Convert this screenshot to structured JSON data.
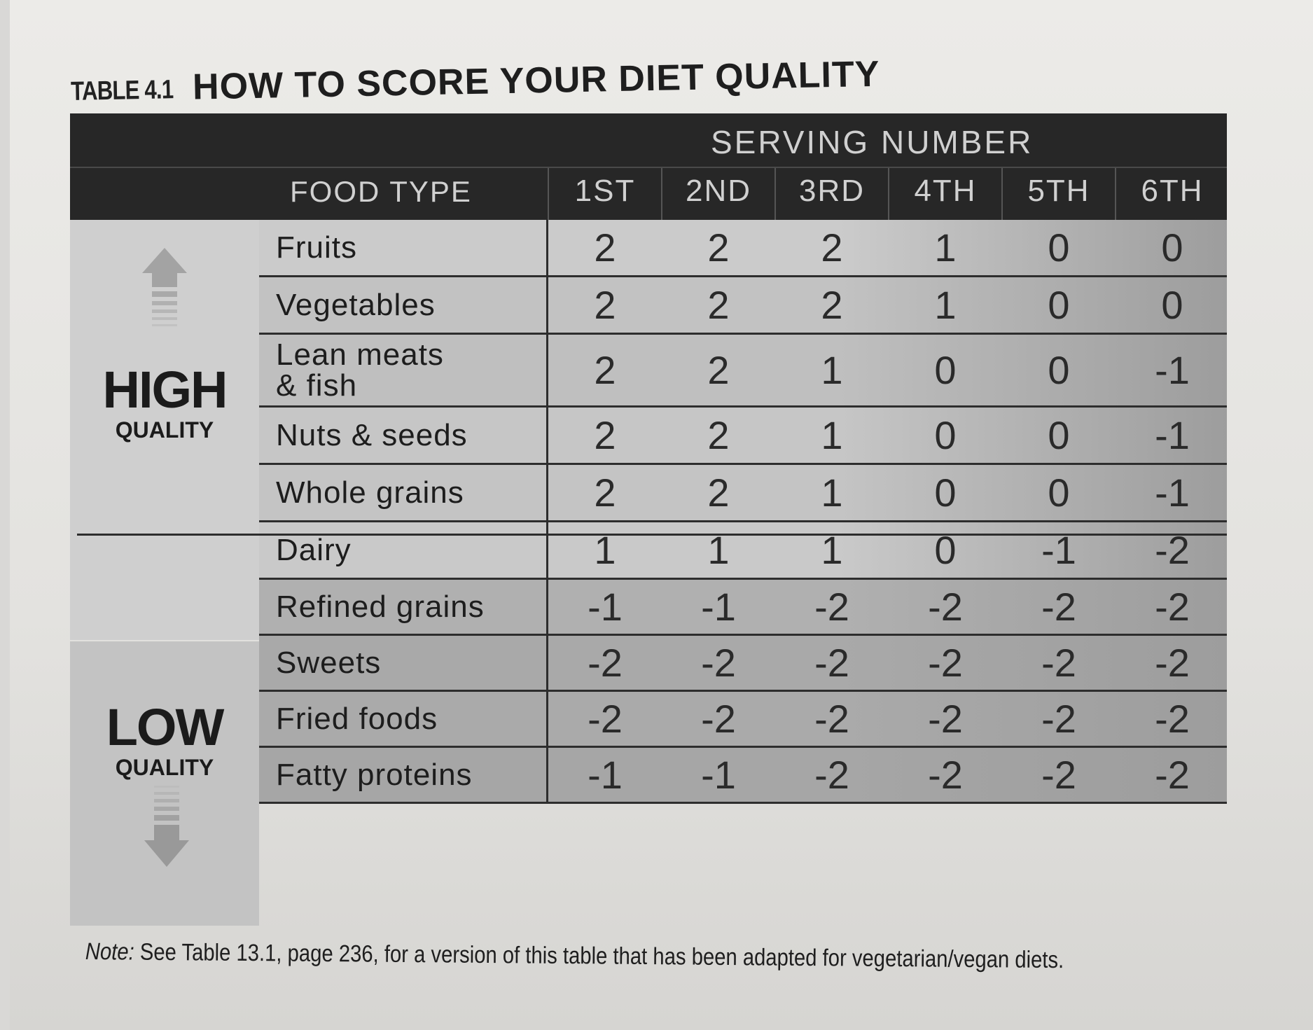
{
  "title": {
    "label": "TABLE 4.1",
    "text": "HOW TO SCORE YOUR DIET QUALITY"
  },
  "header": {
    "serving_title": "SERVING NUMBER",
    "food_type": "FOOD TYPE",
    "columns": [
      "1ST",
      "2ND",
      "3RD",
      "4TH",
      "5TH",
      "6TH"
    ]
  },
  "quality": {
    "high": {
      "big": "HIGH",
      "small": "QUALITY"
    },
    "low": {
      "big": "LOW",
      "small": "QUALITY"
    }
  },
  "rows": [
    {
      "food": "Fruits",
      "values": [
        "2",
        "2",
        "2",
        "1",
        "0",
        "0"
      ]
    },
    {
      "food": "Vegetables",
      "values": [
        "2",
        "2",
        "2",
        "1",
        "0",
        "0"
      ]
    },
    {
      "food": "Lean meats\n& fish",
      "values": [
        "2",
        "2",
        "1",
        "0",
        "0",
        "-1"
      ]
    },
    {
      "food": "Nuts & seeds",
      "values": [
        "2",
        "2",
        "1",
        "0",
        "0",
        "-1"
      ]
    },
    {
      "food": "Whole grains",
      "values": [
        "2",
        "2",
        "1",
        "0",
        "0",
        "-1"
      ]
    },
    {
      "food": "Dairy",
      "values": [
        "1",
        "1",
        "1",
        "0",
        "-1",
        "-2"
      ]
    },
    {
      "food": "Refined grains",
      "values": [
        "-1",
        "-1",
        "-2",
        "-2",
        "-2",
        "-2"
      ]
    },
    {
      "food": "Sweets",
      "values": [
        "-2",
        "-2",
        "-2",
        "-2",
        "-2",
        "-2"
      ]
    },
    {
      "food": "Fried foods",
      "values": [
        "-2",
        "-2",
        "-2",
        "-2",
        "-2",
        "-2"
      ]
    },
    {
      "food": "Fatty proteins",
      "values": [
        "-1",
        "-1",
        "-2",
        "-2",
        "-2",
        "-2"
      ]
    }
  ],
  "note": {
    "prefix": "Note:",
    "text": " See Table 13.1, page 236, for a version of this table that has been adapted for vegetarian/vegan diets."
  }
}
